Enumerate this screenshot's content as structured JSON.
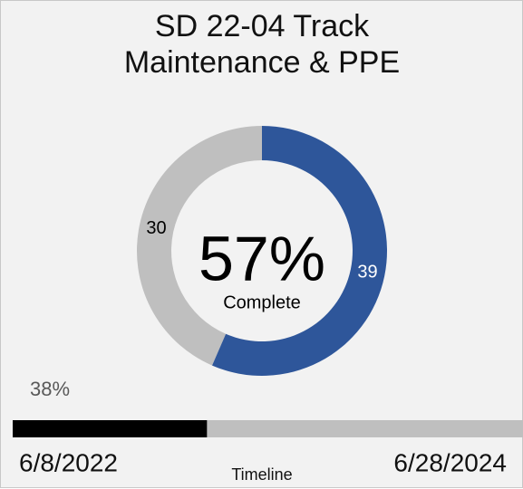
{
  "chart_data": {
    "type": "donut",
    "title": "SD 22-04 Track Maintenance & PPE",
    "values": [
      39,
      30
    ],
    "colors": [
      "#2e569a",
      "#bfbfbf"
    ],
    "center_value": 57,
    "center_value_label": "57%",
    "center_caption": "Complete",
    "timeline": {
      "progress": 38,
      "progress_label": "38%",
      "start": "6/8/2022",
      "end": "6/28/2024",
      "caption": "Timeline",
      "fill_color": "#000000",
      "track_color": "#bfbfbf"
    }
  }
}
